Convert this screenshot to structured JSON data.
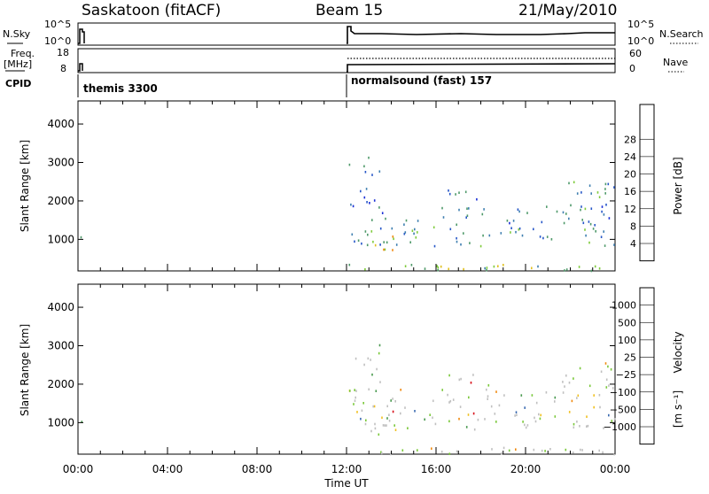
{
  "header": {
    "station": "Saskatoon (fitACF)",
    "beam": "Beam 15",
    "date": "21/May/2010"
  },
  "status_panels": {
    "nsky_label": "N.Sky",
    "nsky_ticks": [
      "10^5",
      "10^0"
    ],
    "nsearch_label": "N.Search",
    "nsearch_ticks": [
      "10^5",
      "10^0"
    ],
    "freq_label": "Freq.",
    "freq_unit": "[MHz]",
    "freq_ticks": [
      "18",
      "8"
    ],
    "nave_label": "Nave",
    "nave_ticks": [
      "60",
      "0"
    ],
    "cpid_label": "CPID",
    "modes": [
      {
        "name": "themis 3300",
        "start_hour": 0
      },
      {
        "name": "normalsound (fast) 157",
        "start_hour": 12
      }
    ]
  },
  "x_axis": {
    "label": "Time UT",
    "ticks": [
      "00:00",
      "04:00",
      "08:00",
      "12:00",
      "16:00",
      "20:00",
      "00:00"
    ],
    "range_hours": [
      0,
      24
    ]
  },
  "chart_data": [
    {
      "type": "heatmap",
      "panel": "power",
      "ylabel": "Slant Range [km]",
      "yticks": [
        "1000",
        "2000",
        "3000",
        "4000"
      ],
      "ylim": [
        180,
        4600
      ],
      "xlim": [
        0,
        24
      ],
      "colorbar_label": "Power [dB]",
      "colorbar_ticks": [
        "4",
        "8",
        "12",
        "16",
        "20",
        "24",
        "28"
      ],
      "colorbar_colors": [
        "#1a2fd6",
        "#2757c8",
        "#3f7fb0",
        "#4f9a6a",
        "#7fcb3c",
        "#e0c020",
        "#f08a10",
        "#e8501a",
        "#d8201a"
      ],
      "echo_bands": [
        {
          "t0": 12.1,
          "t1": 24,
          "r0": 200,
          "r1": 380,
          "level": 0.55
        },
        {
          "t0": 12.8,
          "t1": 14.2,
          "r0": 700,
          "r1": 1150,
          "level": 0.8
        },
        {
          "t0": 12.2,
          "t1": 24,
          "r0": 850,
          "r1": 1350,
          "level": 0.3
        },
        {
          "t0": 12.2,
          "t1": 24,
          "r0": 1400,
          "r1": 1900,
          "level": 0.15
        },
        {
          "t0": 12.1,
          "t1": 13.5,
          "r0": 1800,
          "r1": 3200,
          "level": 0.12
        },
        {
          "t0": 16.5,
          "t1": 18.5,
          "r0": 1900,
          "r1": 2300,
          "level": 0.15
        },
        {
          "t0": 21.5,
          "t1": 24,
          "r0": 1900,
          "r1": 2600,
          "level": 0.25
        },
        {
          "t0": 0.0,
          "t1": 0.15,
          "r0": 850,
          "r1": 1150,
          "level": 0.5
        }
      ]
    },
    {
      "type": "heatmap",
      "panel": "velocity",
      "ylabel": "Slant Range [km]",
      "yticks": [
        "1000",
        "2000",
        "3000",
        "4000"
      ],
      "ylim": [
        180,
        4600
      ],
      "xlim": [
        0,
        24
      ],
      "colorbar_label": "Velocity",
      "colorbar_unit": "[m s⁻¹]",
      "colorbar_ticks": [
        "1000",
        "500",
        "100",
        "25",
        "−25",
        "−100",
        "−500",
        "−1000"
      ],
      "colorbar_colors": [
        "#2a3fb8",
        "#3a6ab0",
        "#4a9a50",
        "#7ac83a",
        "#c0c0c0",
        "#f0c020",
        "#f08a10",
        "#e8401a",
        "#d8101a"
      ],
      "echo_bands": [
        {
          "t0": 12.1,
          "t1": 24,
          "r0": 200,
          "r1": 380,
          "level": 0.55
        },
        {
          "t0": 12.8,
          "t1": 14.2,
          "r0": 700,
          "r1": 1150,
          "level": 0.8
        },
        {
          "t0": 12.2,
          "t1": 24,
          "r0": 850,
          "r1": 1350,
          "level": 0.3
        },
        {
          "t0": 12.2,
          "t1": 24,
          "r0": 1400,
          "r1": 1900,
          "level": 0.15
        },
        {
          "t0": 12.1,
          "t1": 13.5,
          "r0": 1800,
          "r1": 3200,
          "level": 0.12
        },
        {
          "t0": 16.5,
          "t1": 18.5,
          "r0": 1900,
          "r1": 2300,
          "level": 0.15
        },
        {
          "t0": 21.5,
          "t1": 24,
          "r0": 1900,
          "r1": 2600,
          "level": 0.25
        },
        {
          "t0": 0.0,
          "t1": 0.15,
          "r0": 850,
          "r1": 1150,
          "level": 0.5
        }
      ]
    }
  ]
}
